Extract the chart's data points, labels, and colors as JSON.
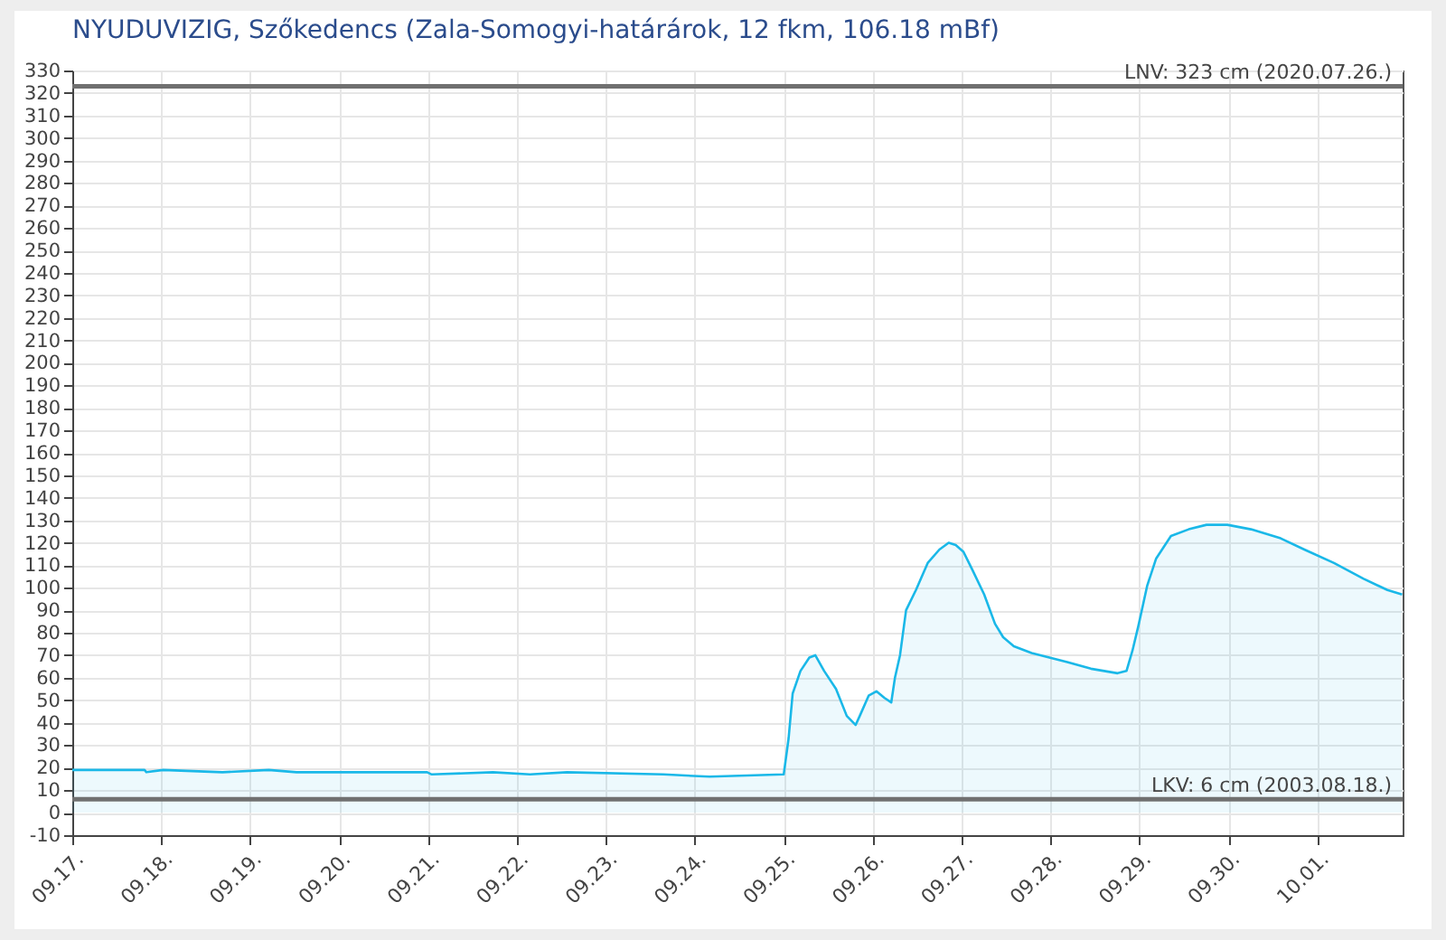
{
  "chart_data": {
    "type": "area",
    "title": "NYUDUVIZIG, Szőkedencs (Zala-Somogyi-határárok, 12 fkm, 106.18 mBf)",
    "series": [
      {
        "color": "#1ab8e8",
        "x": [
          "--09-17T00:00",
          "--09-17T19:30",
          "--09-17T20:00",
          "--09-18T00:30",
          "--09-18T16:30",
          "--09-19T05:00",
          "--09-19T12:30",
          "--09-20T23:45",
          "--09-21T01:00",
          "--09-21T17:30",
          "--09-22T03:30",
          "--09-22T13:30",
          "--09-23T15:30",
          "--09-24T04:00",
          "--09-24T23:59",
          "--09-25T01:18",
          "--09-25T02:24",
          "--09-25T04:30",
          "--09-25T06:54",
          "--09-25T08:30",
          "--09-25T10:54",
          "--09-25T14:06",
          "--09-25T17:00",
          "--09-25T19:24",
          "--09-25T20:30",
          "--09-25T22:54",
          "--09-26T01:00",
          "--09-26T03:12",
          "--09-26T05:00",
          "--09-26T06:00",
          "--09-26T07:22",
          "--09-26T09:00",
          "--09-26T11:40",
          "--09-26T14:50",
          "--09-26T18:00",
          "--09-26T20:30",
          "--09-26T22:24",
          "--09-27T00:29",
          "--09-27T02:53",
          "--09-27T06:05",
          "--09-27T09:00",
          "--09-27T11:12",
          "--09-27T14:05",
          "--09-27T18:53",
          "--09-27T23:41",
          "--09-28T04:29",
          "--09-28T10:53",
          "--09-28T18:05",
          "--09-28T20:29",
          "--09-28T22:05",
          "--09-28T23:41",
          "--09-29T02:05",
          "--09-29T04:29",
          "--09-29T08:29",
          "--09-29T13:17",
          "--09-29T18:05",
          "--09-29T23:41",
          "--09-30T06:05",
          "--09-30T14:05",
          "--09-30T20:29",
          "--10-01T04:29",
          "--10-01T12:29",
          "--10-01T18:53",
          "--10-01T22:53"
        ],
        "values": [
          19,
          19,
          18,
          19,
          18,
          19,
          18,
          18,
          17,
          18,
          17,
          18,
          17,
          16,
          17,
          33,
          53,
          63,
          69,
          70,
          63,
          55,
          43,
          39,
          43,
          52,
          54,
          51,
          49,
          60,
          70,
          90,
          99,
          111,
          117,
          120,
          119,
          116,
          108,
          97,
          84,
          78,
          74,
          71,
          69,
          67,
          64,
          62,
          63,
          72,
          83,
          101,
          113,
          123,
          126,
          128,
          128,
          126,
          122,
          117,
          111,
          104,
          99,
          97
        ]
      }
    ],
    "xlim": [
      "--09-17T00:00",
      "--10-01T23:00"
    ],
    "xticks": [
      {
        "value": "--09-17",
        "label": "09.17."
      },
      {
        "value": "--09-18",
        "label": "09.18."
      },
      {
        "value": "--09-19",
        "label": "09.19."
      },
      {
        "value": "--09-20",
        "label": "09.20."
      },
      {
        "value": "--09-21",
        "label": "09.21."
      },
      {
        "value": "--09-22",
        "label": "09.22."
      },
      {
        "value": "--09-23",
        "label": "09.23."
      },
      {
        "value": "--09-24",
        "label": "09.24."
      },
      {
        "value": "--09-25",
        "label": "09.25."
      },
      {
        "value": "--09-26",
        "label": "09.26."
      },
      {
        "value": "--09-27",
        "label": "09.27."
      },
      {
        "value": "--09-28",
        "label": "09.28."
      },
      {
        "value": "--09-29",
        "label": "09.29."
      },
      {
        "value": "--09-30",
        "label": "09.30."
      },
      {
        "value": "--10-01",
        "label": "10.01."
      }
    ],
    "ylim": [
      -10,
      330
    ],
    "yticks": [
      -10,
      0,
      10,
      20,
      30,
      40,
      50,
      60,
      70,
      80,
      90,
      100,
      110,
      120,
      130,
      140,
      150,
      160,
      170,
      180,
      190,
      200,
      210,
      220,
      230,
      240,
      250,
      260,
      270,
      280,
      290,
      300,
      310,
      320,
      330
    ],
    "ref_lines": [
      {
        "axis": "y",
        "value": 323,
        "label": "LNV: 323 cm (2020.07.26.)",
        "color": "#707070"
      },
      {
        "axis": "y",
        "value": 6,
        "label": "LKV: 6 cm (2003.08.18.)",
        "color": "#707070"
      }
    ],
    "grid": true
  }
}
